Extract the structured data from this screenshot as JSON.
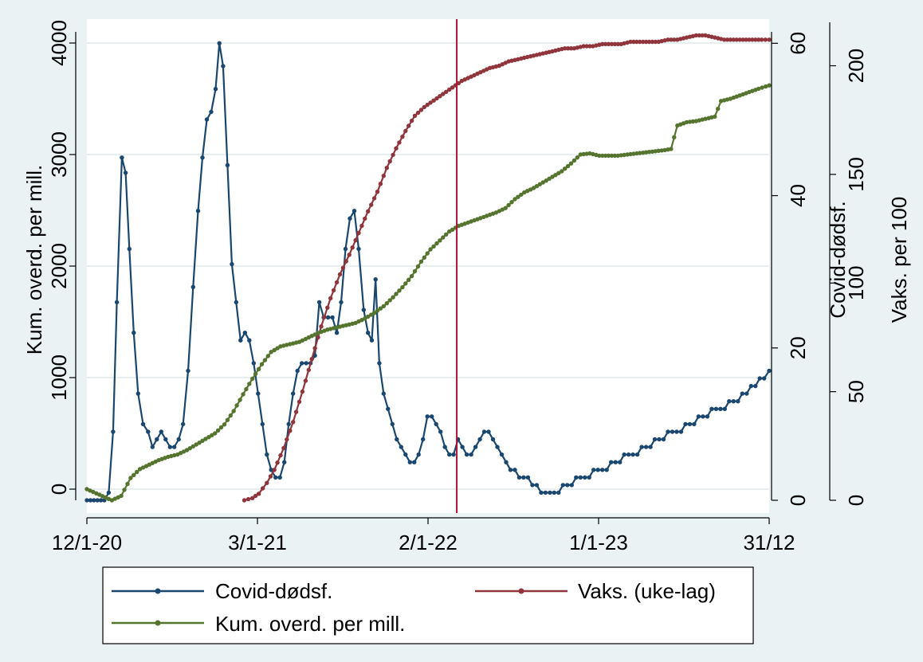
{
  "chart_data": {
    "type": "line",
    "title": "",
    "xlabel": "",
    "legend_placement": "bottom",
    "grid": "horizontal",
    "x_ticks": [
      "12/1-20",
      "3/1-21",
      "2/1-22",
      "1/1-23",
      "31/12"
    ],
    "x_range": [
      0,
      1092
    ],
    "axes": {
      "left": {
        "label": "Kum. overd. per mill.",
        "ticks": [
          0,
          1000,
          2000,
          3000,
          4000
        ],
        "range": [
          -100,
          4100
        ]
      },
      "right1": {
        "label": "Covid-dødsf.",
        "ticks": [
          0,
          20,
          40,
          60
        ],
        "range": [
          0,
          61.5
        ]
      },
      "right2": {
        "label": "Vaks. per 100",
        "ticks": [
          0,
          50,
          100,
          150,
          200
        ],
        "range": [
          0,
          220
        ]
      }
    },
    "vline": {
      "x": 592,
      "color": "#b01434"
    },
    "series": [
      {
        "name": "Covid-dødsf.",
        "axis": "right1",
        "color": "#1a476f",
        "points": [
          [
            0,
            0
          ],
          [
            28,
            0
          ],
          [
            35,
            1
          ],
          [
            42,
            9
          ],
          [
            48,
            26
          ],
          [
            56,
            45
          ],
          [
            62,
            43
          ],
          [
            68,
            33
          ],
          [
            75,
            22
          ],
          [
            82,
            14
          ],
          [
            90,
            10
          ],
          [
            98,
            9
          ],
          [
            105,
            7
          ],
          [
            112,
            8
          ],
          [
            119,
            9
          ],
          [
            126,
            8
          ],
          [
            133,
            7
          ],
          [
            140,
            7
          ],
          [
            147,
            8
          ],
          [
            154,
            10
          ],
          [
            162,
            17
          ],
          [
            170,
            28
          ],
          [
            178,
            38
          ],
          [
            185,
            45
          ],
          [
            192,
            50
          ],
          [
            199,
            51
          ],
          [
            206,
            54
          ],
          [
            212,
            60
          ],
          [
            218,
            57
          ],
          [
            225,
            44
          ],
          [
            232,
            31
          ],
          [
            239,
            26
          ],
          [
            246,
            21
          ],
          [
            253,
            22
          ],
          [
            260,
            21
          ],
          [
            267,
            18
          ],
          [
            274,
            14
          ],
          [
            281,
            10
          ],
          [
            288,
            6
          ],
          [
            295,
            4
          ],
          [
            302,
            3
          ],
          [
            309,
            3
          ],
          [
            316,
            5
          ],
          [
            323,
            10
          ],
          [
            330,
            14
          ],
          [
            337,
            17
          ],
          [
            344,
            18
          ],
          [
            351,
            18
          ],
          [
            358,
            18
          ],
          [
            365,
            19
          ],
          [
            372,
            26
          ],
          [
            379,
            24
          ],
          [
            386,
            24
          ],
          [
            393,
            24
          ],
          [
            400,
            22
          ],
          [
            407,
            26
          ],
          [
            414,
            33
          ],
          [
            421,
            37
          ],
          [
            428,
            38
          ],
          [
            435,
            33
          ],
          [
            443,
            25
          ],
          [
            450,
            22
          ],
          [
            456,
            21
          ],
          [
            462,
            29
          ],
          [
            468,
            18
          ],
          [
            475,
            14
          ],
          [
            482,
            12
          ],
          [
            489,
            10
          ],
          [
            496,
            8
          ],
          [
            503,
            7
          ],
          [
            510,
            6
          ],
          [
            517,
            5
          ],
          [
            524,
            5
          ],
          [
            531,
            6
          ],
          [
            538,
            8
          ],
          [
            545,
            11
          ],
          [
            552,
            11
          ],
          [
            559,
            10
          ],
          [
            566,
            9
          ],
          [
            573,
            7
          ],
          [
            580,
            6
          ],
          [
            587,
            6
          ],
          [
            594,
            8
          ],
          [
            601,
            7
          ],
          [
            608,
            6
          ],
          [
            615,
            6
          ],
          [
            622,
            7
          ],
          [
            629,
            8
          ],
          [
            636,
            9
          ],
          [
            643,
            9
          ],
          [
            650,
            8
          ],
          [
            657,
            7
          ],
          [
            664,
            6
          ],
          [
            671,
            5
          ],
          [
            678,
            4
          ],
          [
            685,
            4
          ],
          [
            692,
            3
          ],
          [
            699,
            3
          ],
          [
            706,
            3
          ],
          [
            713,
            2
          ],
          [
            720,
            2
          ],
          [
            727,
            1
          ],
          [
            734,
            1
          ],
          [
            741,
            1
          ],
          [
            748,
            1
          ],
          [
            755,
            1
          ],
          [
            762,
            2
          ],
          [
            769,
            2
          ],
          [
            776,
            2
          ],
          [
            783,
            3
          ],
          [
            790,
            3
          ],
          [
            797,
            3
          ],
          [
            804,
            3
          ],
          [
            811,
            4
          ],
          [
            818,
            4
          ],
          [
            825,
            4
          ],
          [
            832,
            4
          ],
          [
            839,
            5
          ],
          [
            846,
            5
          ],
          [
            853,
            5
          ],
          [
            860,
            6
          ],
          [
            867,
            6
          ],
          [
            874,
            6
          ],
          [
            881,
            6
          ],
          [
            888,
            7
          ],
          [
            895,
            7
          ],
          [
            902,
            7
          ],
          [
            909,
            8
          ],
          [
            916,
            8
          ],
          [
            923,
            8
          ],
          [
            930,
            9
          ],
          [
            937,
            9
          ],
          [
            944,
            9
          ],
          [
            951,
            9
          ],
          [
            958,
            10
          ],
          [
            965,
            10
          ],
          [
            972,
            10
          ],
          [
            979,
            11
          ],
          [
            986,
            11
          ],
          [
            993,
            11
          ],
          [
            1000,
            12
          ],
          [
            1007,
            12
          ],
          [
            1014,
            12
          ],
          [
            1021,
            12
          ],
          [
            1028,
            13
          ],
          [
            1035,
            13
          ],
          [
            1042,
            13
          ],
          [
            1049,
            14
          ],
          [
            1056,
            14
          ],
          [
            1063,
            15
          ],
          [
            1070,
            15
          ],
          [
            1077,
            16
          ],
          [
            1084,
            16
          ],
          [
            1092,
            17
          ]
        ]
      },
      {
        "name": "Vaks. (uke-lag)",
        "axis": "right2",
        "color": "#90353b",
        "points": [
          [
            252,
            0
          ],
          [
            265,
            1
          ],
          [
            275,
            3
          ],
          [
            288,
            8
          ],
          [
            300,
            14
          ],
          [
            315,
            24
          ],
          [
            330,
            36
          ],
          [
            345,
            50
          ],
          [
            360,
            65
          ],
          [
            375,
            80
          ],
          [
            390,
            93
          ],
          [
            405,
            104
          ],
          [
            420,
            113
          ],
          [
            435,
            123
          ],
          [
            450,
            133
          ],
          [
            465,
            142
          ],
          [
            480,
            153
          ],
          [
            495,
            162
          ],
          [
            510,
            170
          ],
          [
            525,
            177
          ],
          [
            540,
            181
          ],
          [
            555,
            184
          ],
          [
            570,
            187
          ],
          [
            585,
            190
          ],
          [
            600,
            193
          ],
          [
            615,
            195
          ],
          [
            630,
            197
          ],
          [
            645,
            199
          ],
          [
            660,
            200
          ],
          [
            675,
            202
          ],
          [
            690,
            203
          ],
          [
            705,
            204
          ],
          [
            720,
            205
          ],
          [
            735,
            206
          ],
          [
            750,
            207
          ],
          [
            765,
            208
          ],
          [
            780,
            208
          ],
          [
            795,
            209
          ],
          [
            810,
            209
          ],
          [
            825,
            210
          ],
          [
            840,
            210
          ],
          [
            855,
            210
          ],
          [
            870,
            211
          ],
          [
            885,
            211
          ],
          [
            900,
            211
          ],
          [
            915,
            211
          ],
          [
            930,
            212
          ],
          [
            945,
            212
          ],
          [
            960,
            213
          ],
          [
            975,
            214
          ],
          [
            990,
            214
          ],
          [
            1005,
            213
          ],
          [
            1020,
            212
          ],
          [
            1035,
            212
          ],
          [
            1050,
            212
          ],
          [
            1065,
            212
          ],
          [
            1080,
            212
          ],
          [
            1092,
            212
          ]
        ]
      },
      {
        "name": "Kum. overd. per mill.",
        "axis": "left",
        "color": "#55752f",
        "points": [
          [
            0,
            0
          ],
          [
            20,
            -50
          ],
          [
            40,
            -100
          ],
          [
            55,
            -60
          ],
          [
            70,
            100
          ],
          [
            85,
            180
          ],
          [
            100,
            220
          ],
          [
            115,
            260
          ],
          [
            130,
            290
          ],
          [
            145,
            310
          ],
          [
            160,
            350
          ],
          [
            175,
            400
          ],
          [
            190,
            450
          ],
          [
            205,
            500
          ],
          [
            220,
            580
          ],
          [
            235,
            700
          ],
          [
            250,
            850
          ],
          [
            265,
            990
          ],
          [
            280,
            1120
          ],
          [
            295,
            1230
          ],
          [
            310,
            1280
          ],
          [
            325,
            1300
          ],
          [
            340,
            1320
          ],
          [
            355,
            1360
          ],
          [
            370,
            1400
          ],
          [
            385,
            1430
          ],
          [
            400,
            1450
          ],
          [
            415,
            1470
          ],
          [
            430,
            1490
          ],
          [
            445,
            1530
          ],
          [
            460,
            1580
          ],
          [
            475,
            1640
          ],
          [
            490,
            1720
          ],
          [
            505,
            1810
          ],
          [
            520,
            1910
          ],
          [
            535,
            2040
          ],
          [
            550,
            2150
          ],
          [
            565,
            2230
          ],
          [
            580,
            2310
          ],
          [
            595,
            2360
          ],
          [
            610,
            2390
          ],
          [
            625,
            2420
          ],
          [
            640,
            2450
          ],
          [
            655,
            2480
          ],
          [
            670,
            2520
          ],
          [
            685,
            2600
          ],
          [
            700,
            2660
          ],
          [
            715,
            2700
          ],
          [
            730,
            2750
          ],
          [
            745,
            2800
          ],
          [
            760,
            2850
          ],
          [
            775,
            2920
          ],
          [
            790,
            3000
          ],
          [
            805,
            3010
          ],
          [
            820,
            2990
          ],
          [
            835,
            2990
          ],
          [
            850,
            2990
          ],
          [
            865,
            3000
          ],
          [
            880,
            3010
          ],
          [
            895,
            3020
          ],
          [
            910,
            3030
          ],
          [
            925,
            3040
          ],
          [
            935,
            3050
          ],
          [
            945,
            3260
          ],
          [
            960,
            3290
          ],
          [
            975,
            3300
          ],
          [
            990,
            3320
          ],
          [
            1005,
            3340
          ],
          [
            1015,
            3480
          ],
          [
            1030,
            3500
          ],
          [
            1045,
            3530
          ],
          [
            1060,
            3560
          ],
          [
            1075,
            3590
          ],
          [
            1092,
            3620
          ]
        ]
      }
    ]
  },
  "legend": {
    "items": [
      {
        "label": "Covid-dødsf.",
        "color": "#1a476f"
      },
      {
        "label": "Vaks. (uke-lag)",
        "color": "#90353b"
      },
      {
        "label": "Kum. overd. per mill.",
        "color": "#55752f"
      }
    ]
  }
}
